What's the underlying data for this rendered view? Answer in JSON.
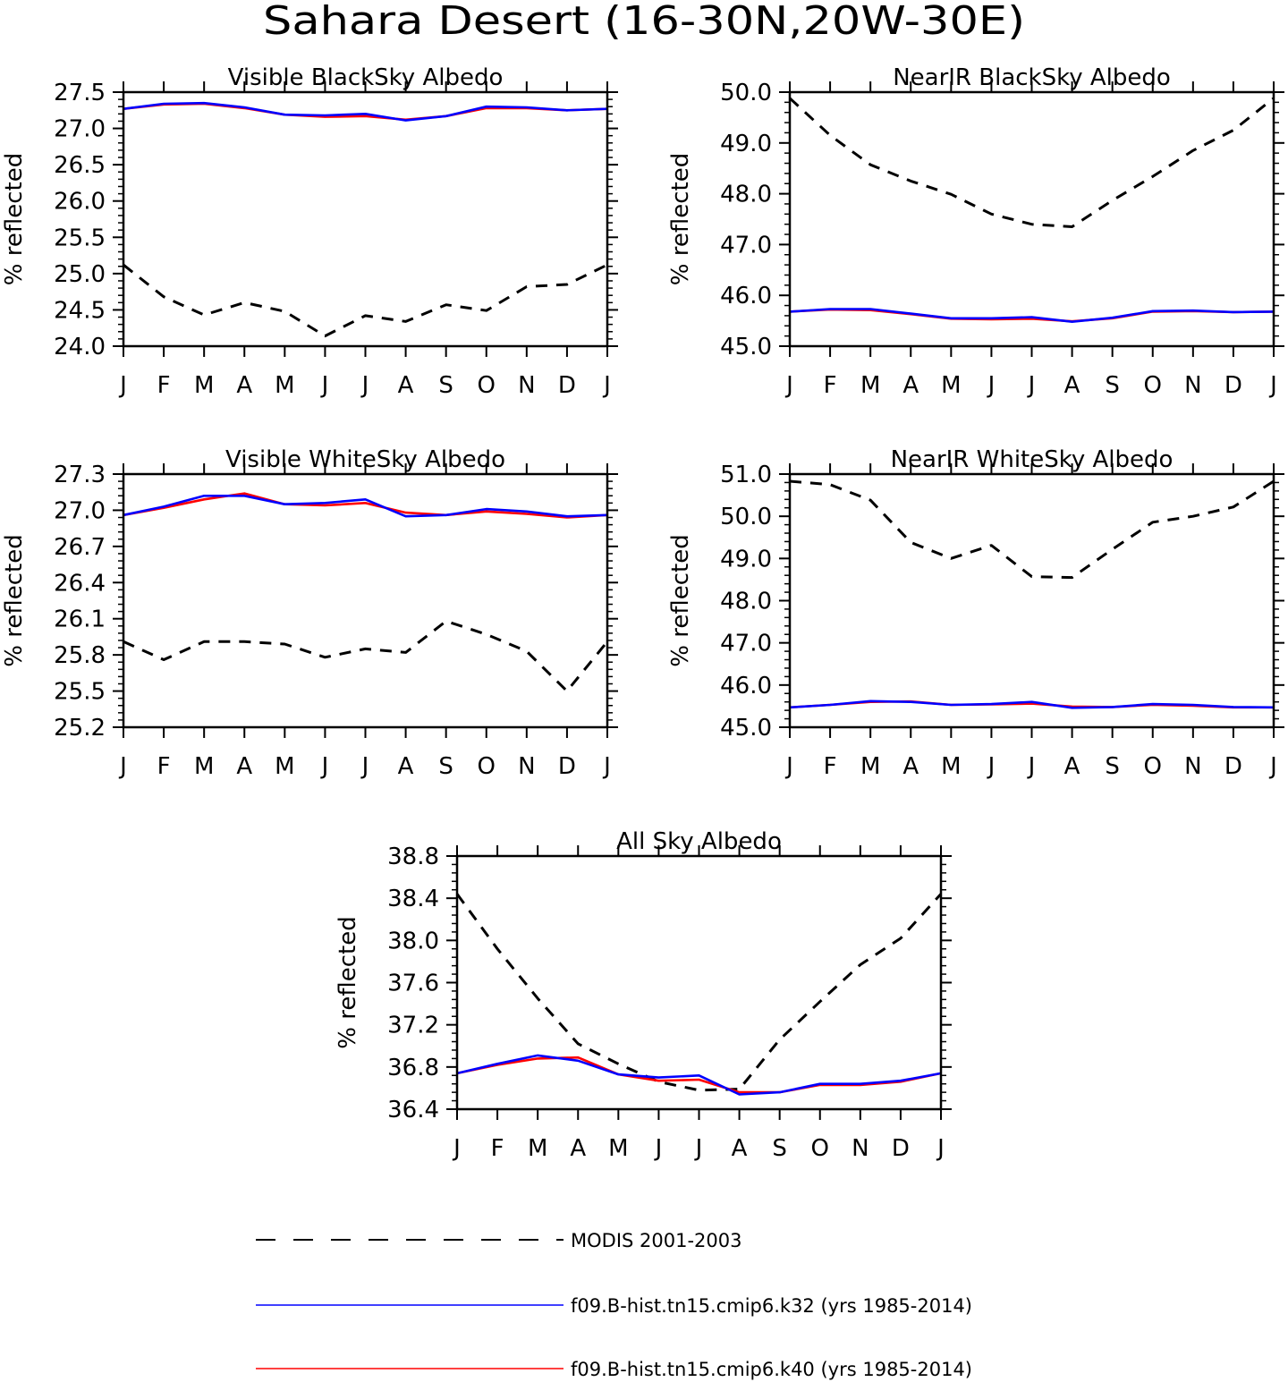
{
  "title": "Sahara Desert (16-30N,20W-30E)",
  "months": [
    "J",
    "F",
    "M",
    "A",
    "M",
    "J",
    "J",
    "A",
    "S",
    "O",
    "N",
    "D",
    "J"
  ],
  "legend": [
    {
      "label": "MODIS 2001-2003",
      "color": "#000000",
      "dash": true
    },
    {
      "label": "f09.B-hist.tn15.cmip6.k32 (yrs 1985-2014)",
      "color": "#0000ff",
      "dash": false
    },
    {
      "label": "f09.B-hist.tn15.cmip6.k40 (yrs 1985-2014)",
      "color": "#ff0000",
      "dash": false
    }
  ],
  "chart_data": [
    {
      "type": "line",
      "title": "Visible BlackSky Albedo",
      "ylabel": "% reflected",
      "ylim": [
        24.0,
        27.5
      ],
      "yticks": [
        "24.0",
        "24.5",
        "25.0",
        "25.5",
        "26.0",
        "26.5",
        "27.0",
        "27.5"
      ],
      "series": [
        {
          "name": "MODIS 2001-2003",
          "values": [
            25.12,
            24.68,
            24.43,
            24.6,
            24.48,
            24.14,
            24.42,
            24.34,
            24.57,
            24.49,
            24.82,
            24.85,
            25.12
          ]
        },
        {
          "name": "f09.B-hist.tn15.cmip6.k40 (yrs 1985-2014)",
          "values": [
            27.27,
            27.33,
            27.34,
            27.28,
            27.19,
            27.16,
            27.17,
            27.12,
            27.17,
            27.28,
            27.28,
            27.25,
            27.27
          ]
        },
        {
          "name": "f09.B-hist.tn15.cmip6.k32 (yrs 1985-2014)",
          "values": [
            27.27,
            27.34,
            27.35,
            27.29,
            27.19,
            27.18,
            27.2,
            27.11,
            27.17,
            27.3,
            27.29,
            27.25,
            27.27
          ]
        }
      ]
    },
    {
      "type": "line",
      "title": "NearIR BlackSky Albedo",
      "ylabel": "% reflected",
      "ylim": [
        45.0,
        50.0
      ],
      "yticks": [
        "45.0",
        "46.0",
        "47.0",
        "48.0",
        "49.0",
        "50.0"
      ],
      "series": [
        {
          "name": "MODIS 2001-2003",
          "values": [
            49.88,
            49.15,
            48.57,
            48.25,
            47.99,
            47.6,
            47.4,
            47.35,
            47.87,
            48.34,
            48.85,
            49.25,
            49.88
          ]
        },
        {
          "name": "f09.B-hist.tn15.cmip6.k40 (yrs 1985-2014)",
          "values": [
            45.68,
            45.72,
            45.71,
            45.63,
            45.54,
            45.53,
            45.54,
            45.49,
            45.55,
            45.68,
            45.69,
            45.67,
            45.68
          ]
        },
        {
          "name": "f09.B-hist.tn15.cmip6.k32 (yrs 1985-2014)",
          "values": [
            45.68,
            45.73,
            45.73,
            45.64,
            45.55,
            45.55,
            45.57,
            45.48,
            45.56,
            45.69,
            45.7,
            45.67,
            45.68
          ]
        }
      ]
    },
    {
      "type": "line",
      "title": "Visible WhiteSky Albedo",
      "ylabel": "% reflected",
      "ylim": [
        25.2,
        27.3
      ],
      "yticks": [
        "25.2",
        "25.5",
        "25.8",
        "26.1",
        "26.4",
        "26.7",
        "27.0",
        "27.3"
      ],
      "series": [
        {
          "name": "MODIS 2001-2003",
          "values": [
            25.91,
            25.76,
            25.91,
            25.91,
            25.89,
            25.78,
            25.85,
            25.82,
            26.08,
            25.97,
            25.83,
            25.5,
            25.91
          ]
        },
        {
          "name": "f09.B-hist.tn15.cmip6.k40 (yrs 1985-2014)",
          "values": [
            26.96,
            27.02,
            27.09,
            27.14,
            27.05,
            27.04,
            27.06,
            26.98,
            26.96,
            26.99,
            26.97,
            26.94,
            26.96
          ]
        },
        {
          "name": "f09.B-hist.tn15.cmip6.k32 (yrs 1985-2014)",
          "values": [
            26.96,
            27.03,
            27.12,
            27.12,
            27.05,
            27.06,
            27.09,
            26.95,
            26.96,
            27.01,
            26.99,
            26.95,
            26.96
          ]
        }
      ]
    },
    {
      "type": "line",
      "title": "NearIR WhiteSky Albedo",
      "ylabel": "% reflected",
      "ylim": [
        45.0,
        51.0
      ],
      "yticks": [
        "45.0",
        "46.0",
        "47.0",
        "48.0",
        "49.0",
        "50.0",
        "51.0"
      ],
      "series": [
        {
          "name": "MODIS 2001-2003",
          "values": [
            50.83,
            50.75,
            50.38,
            49.38,
            49.0,
            49.31,
            48.57,
            48.55,
            49.22,
            49.86,
            50.0,
            50.22,
            50.83
          ]
        },
        {
          "name": "f09.B-hist.tn15.cmip6.k40 (yrs 1985-2014)",
          "values": [
            45.47,
            45.53,
            45.6,
            45.61,
            45.53,
            45.54,
            45.56,
            45.49,
            45.48,
            45.53,
            45.51,
            45.47,
            45.47
          ]
        },
        {
          "name": "f09.B-hist.tn15.cmip6.k32 (yrs 1985-2014)",
          "values": [
            45.47,
            45.53,
            45.62,
            45.6,
            45.53,
            45.55,
            45.6,
            45.46,
            45.48,
            45.55,
            45.53,
            45.48,
            45.47
          ]
        }
      ]
    },
    {
      "type": "line",
      "title": "All Sky Albedo",
      "ylabel": "% reflected",
      "ylim": [
        36.4,
        38.8
      ],
      "yticks": [
        "36.4",
        "36.8",
        "37.2",
        "37.6",
        "38.0",
        "38.4",
        "38.8"
      ],
      "series": [
        {
          "name": "MODIS 2001-2003",
          "values": [
            38.44,
            37.92,
            37.45,
            37.02,
            36.83,
            36.66,
            36.58,
            36.59,
            37.06,
            37.42,
            37.77,
            38.02,
            38.44
          ]
        },
        {
          "name": "f09.B-hist.tn15.cmip6.k40 (yrs 1985-2014)",
          "values": [
            36.74,
            36.82,
            36.88,
            36.89,
            36.73,
            36.67,
            36.68,
            36.56,
            36.56,
            36.63,
            36.63,
            36.66,
            36.74
          ]
        },
        {
          "name": "f09.B-hist.tn15.cmip6.k32 (yrs 1985-2014)",
          "values": [
            36.74,
            36.83,
            36.91,
            36.86,
            36.73,
            36.7,
            36.72,
            36.54,
            36.56,
            36.64,
            36.64,
            36.67,
            36.74
          ]
        }
      ]
    }
  ]
}
